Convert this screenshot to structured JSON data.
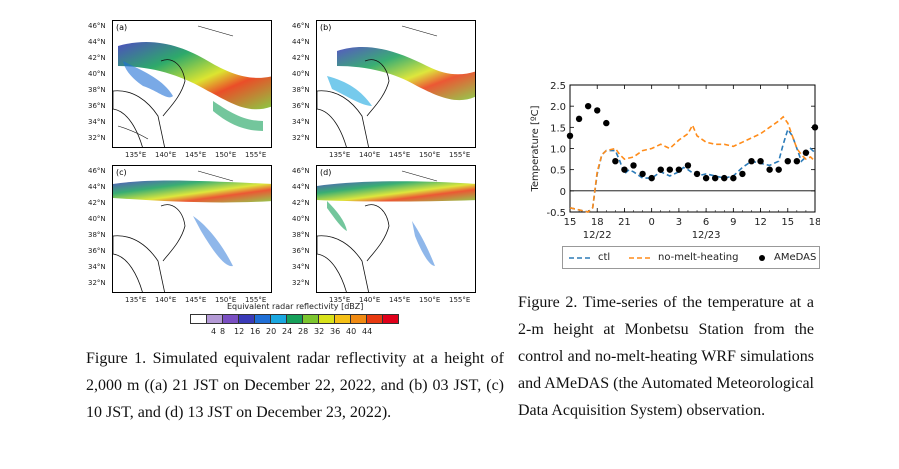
{
  "figure1": {
    "panels": [
      {
        "label": "(a)",
        "lat_ticks": [
          "46°N",
          "44°N",
          "42°N",
          "40°N",
          "38°N",
          "36°N",
          "34°N",
          "32°N"
        ],
        "lon_ticks": [
          "135°E",
          "140°E",
          "145°E",
          "150°E",
          "155°E"
        ]
      },
      {
        "label": "(b)",
        "lat_ticks": [
          "46°N",
          "44°N",
          "42°N",
          "40°N",
          "38°N",
          "36°N",
          "34°N",
          "32°N"
        ],
        "lon_ticks": [
          "135°E",
          "140°E",
          "145°E",
          "150°E",
          "155°E"
        ]
      },
      {
        "label": "(c)",
        "lat_ticks": [
          "46°N",
          "44°N",
          "42°N",
          "40°N",
          "38°N",
          "36°N",
          "34°N",
          "32°N"
        ],
        "lon_ticks": [
          "135°E",
          "140°E",
          "145°E",
          "150°E",
          "155°E"
        ]
      },
      {
        "label": "(d)",
        "lat_ticks": [
          "46°N",
          "44°N",
          "42°N",
          "40°N",
          "38°N",
          "36°N",
          "34°N",
          "32°N"
        ],
        "lon_ticks": [
          "135°E",
          "140°E",
          "145°E",
          "150°E",
          "155°E"
        ]
      }
    ],
    "colorbar": {
      "title": "Equivalent radar reflectivity  [dBZ]",
      "ticks": [
        "4",
        "8",
        "12",
        "16",
        "20",
        "24",
        "28",
        "32",
        "36",
        "40",
        "44"
      ],
      "colors": [
        "#ffffff",
        "#b49ad6",
        "#7a4fc2",
        "#3a3ab8",
        "#1f6fd6",
        "#1aa7e0",
        "#16a05a",
        "#7cc62f",
        "#d8e21a",
        "#f5c016",
        "#f08a12",
        "#e83a10",
        "#e0001a"
      ]
    },
    "caption": "Figure 1. Simulated equivalent radar reflectivity at a height of 2,000 m ((a) 21 JST on December 22, 2022, and (b) 03 JST, (c) 10 JST, and (d) 13 JST on December 23, 2022)."
  },
  "figure2": {
    "caption": "Figure 2. Time-series of the temperature at a 2-m height at Monbetsu Station from the control and no-melt-heating WRF simulations and AMeDAS (the Automated Meteorological Data Acquisition System) observation."
  },
  "chart_data": {
    "type": "line",
    "title": "",
    "ylabel": "Temperature [ºC]",
    "xlabel": "",
    "ylim": [
      -0.5,
      2.5
    ],
    "yticks": [
      "-0.5",
      "0",
      "0.5",
      "1.0",
      "1.5",
      "2.0",
      "2.5"
    ],
    "xlim": [
      15,
      42
    ],
    "xticks": [
      {
        "x": 15,
        "label": "15"
      },
      {
        "x": 18,
        "label": "18"
      },
      {
        "x": 21,
        "label": "21"
      },
      {
        "x": 24,
        "label": "0"
      },
      {
        "x": 27,
        "label": "3"
      },
      {
        "x": 30,
        "label": "6"
      },
      {
        "x": 33,
        "label": "9"
      },
      {
        "x": 36,
        "label": "12"
      },
      {
        "x": 39,
        "label": "15"
      },
      {
        "x": 42,
        "label": "18"
      }
    ],
    "date_labels": [
      {
        "x": 18,
        "label": "12/22"
      },
      {
        "x": 30,
        "label": "12/23"
      }
    ],
    "series": [
      {
        "name": "ctl",
        "style": "dashed",
        "color": "#2b7bb9",
        "x": [
          15,
          16,
          17,
          17.5,
          18,
          18.5,
          19,
          20,
          20.5,
          21,
          21.5,
          22,
          23,
          24,
          25,
          26,
          27,
          27.5,
          28,
          29,
          30,
          31,
          32,
          33,
          34,
          35,
          36,
          37,
          38,
          38.5,
          39,
          39.5,
          40,
          40.5,
          41,
          41.5,
          42
        ],
        "y": [
          -0.4,
          -0.45,
          -0.5,
          -0.4,
          0.4,
          0.85,
          0.95,
          0.95,
          0.7,
          0.4,
          0.5,
          0.45,
          0.3,
          0.3,
          0.45,
          0.35,
          0.45,
          0.55,
          0.5,
          0.35,
          0.4,
          0.35,
          0.3,
          0.35,
          0.55,
          0.7,
          0.65,
          0.6,
          0.7,
          1.1,
          1.45,
          1.3,
          1.0,
          0.7,
          0.8,
          1.0,
          0.9
        ]
      },
      {
        "name": "no-melt-heating",
        "style": "dashed",
        "color": "#ff8c1a",
        "x": [
          15,
          16,
          17,
          17.5,
          18,
          18.5,
          19,
          20,
          20.5,
          21,
          22,
          23,
          24,
          25,
          26,
          27,
          28,
          28.5,
          29,
          30,
          31,
          32,
          33,
          34,
          35,
          36,
          37,
          38,
          38.5,
          39,
          39.5,
          40,
          40.5,
          41,
          41.5,
          42
        ],
        "y": [
          -0.4,
          -0.45,
          -0.5,
          -0.4,
          0.45,
          0.85,
          0.95,
          1.0,
          0.85,
          0.75,
          0.8,
          0.95,
          1.0,
          1.1,
          1.0,
          1.2,
          1.35,
          1.55,
          1.3,
          1.15,
          1.1,
          1.1,
          1.05,
          1.15,
          1.25,
          1.35,
          1.5,
          1.65,
          1.75,
          1.6,
          1.3,
          1.0,
          0.85,
          0.75,
          0.8,
          0.7
        ]
      },
      {
        "name": "AMeDAS",
        "style": "markers",
        "color": "#000000",
        "x": [
          15,
          16,
          17,
          18,
          19,
          20,
          21,
          22,
          23,
          24,
          25,
          26,
          27,
          28,
          29,
          30,
          31,
          32,
          33,
          34,
          35,
          36,
          37,
          38,
          39,
          40,
          41,
          42
        ],
        "y": [
          1.3,
          1.7,
          2.0,
          1.9,
          1.6,
          0.7,
          0.5,
          0.6,
          0.4,
          0.3,
          0.5,
          0.5,
          0.5,
          0.6,
          0.4,
          0.3,
          0.3,
          0.3,
          0.3,
          0.4,
          0.7,
          0.7,
          0.5,
          0.5,
          0.7,
          0.7,
          0.9,
          1.5
        ]
      }
    ],
    "legend": {
      "placement": "bottom",
      "entries": [
        "ctl",
        "no-melt-heating",
        "AMeDAS"
      ]
    }
  }
}
